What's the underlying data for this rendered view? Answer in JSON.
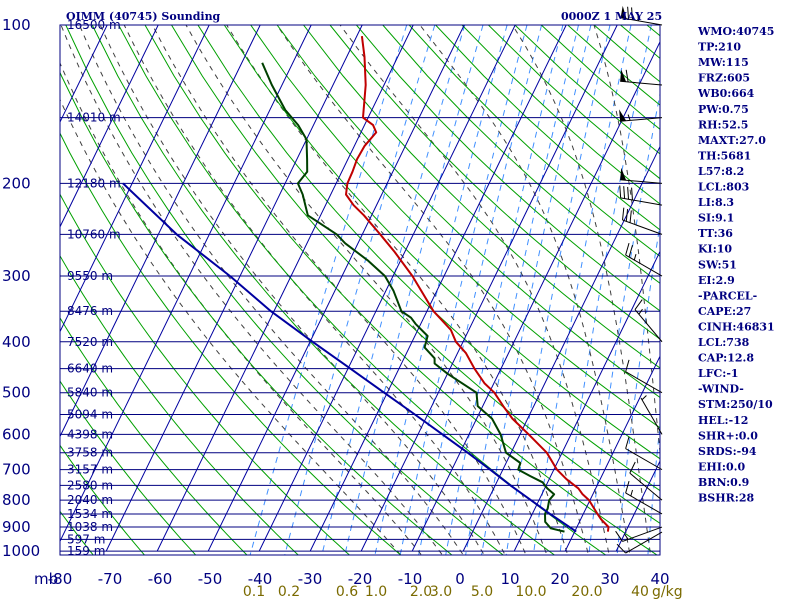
{
  "header": {
    "title": "OIMM (40745) Sounding",
    "time": "0000Z  1 MAY 25"
  },
  "indices": [
    "WMO:40745",
    "TP:210",
    "MW:115",
    "FRZ:605",
    "WB0:664",
    "PW:0.75",
    "RH:52.5",
    "MAXT:27.0",
    "TH:5681",
    "L57:8.2",
    "LCL:803",
    "LI:8.3",
    "SI:9.1",
    "TT:36",
    "KI:10",
    "SW:51",
    "EI:2.9",
    "-PARCEL-",
    "CAPE:27",
    "CINH:46831",
    "LCL:738",
    "CAP:12.8",
    "LFC:-1",
    "-WIND-",
    "STM:250/10",
    "HEL:-12",
    "SHR+:0.0",
    "SRDS:-94",
    "EHI:0.0",
    "BRN:0.9",
    "BSHR:28"
  ],
  "colors": {
    "frame": "#000080",
    "isotherm": "#0000a0",
    "dry_adiabat": "#00a000",
    "moist_adiabat": "#404040",
    "mixing_ratio": "#4090ff",
    "temperature": "#c00000",
    "dewpoint": "#004000",
    "parcel": "#0000a0",
    "wind": "#000000",
    "mix_label": "#7a6a00"
  },
  "chart_data": {
    "type": "line",
    "title": "OIMM (40745) Sounding",
    "xlabel": "",
    "ylabel": "mb",
    "pressure_ticks": [
      100,
      200,
      300,
      400,
      500,
      600,
      700,
      800,
      900,
      1000
    ],
    "pressure_labels": [
      "100",
      "200",
      "300",
      "400",
      "500",
      "600",
      "700",
      "800",
      "900",
      "1000"
    ],
    "ylim": [
      1000,
      100
    ],
    "xlim": [
      -80,
      40
    ],
    "temperature_ticks": [
      -80,
      -70,
      -60,
      -50,
      -40,
      -30,
      -20,
      -10,
      0,
      10,
      20,
      30,
      40
    ],
    "temperature_labels": [
      "-80",
      "-70",
      "-60",
      "-50",
      "-40",
      "-30",
      "-20",
      "-10",
      "0",
      "10",
      "20",
      "30",
      "40"
    ],
    "x_axis_label": "mb",
    "mixing_ratio_labels": [
      {
        "label": "0.1",
        "value": 0.1
      },
      {
        "label": "0.2",
        "value": 0.2
      },
      {
        "label": "0.6",
        "value": 0.6
      },
      {
        "label": "1.0",
        "value": 1.0
      },
      {
        "label": "2.0",
        "value": 2.0
      },
      {
        "label": "3.0",
        "value": 3.0
      },
      {
        "label": "5.0",
        "value": 5.0
      },
      {
        "label": "10.0",
        "value": 10.0
      },
      {
        "label": "20.0",
        "value": 20.0
      },
      {
        "label": "40",
        "value": 40.0
      }
    ],
    "mixing_ratio_unit": "g/kg",
    "height_labels": [
      {
        "p": 100,
        "label": "16500 m"
      },
      {
        "p": 150,
        "label": "14010 m"
      },
      {
        "p": 200,
        "label": "12180 m"
      },
      {
        "p": 250,
        "label": "10760 m"
      },
      {
        "p": 300,
        "label": "9550 m"
      },
      {
        "p": 350,
        "label": "8476 m"
      },
      {
        "p": 400,
        "label": "7520 m"
      },
      {
        "p": 450,
        "label": "6640 m"
      },
      {
        "p": 500,
        "label": "5840 m"
      },
      {
        "p": 550,
        "label": "5094 m"
      },
      {
        "p": 600,
        "label": "4398 m"
      },
      {
        "p": 650,
        "label": "3758 m"
      },
      {
        "p": 700,
        "label": "3157 m"
      },
      {
        "p": 750,
        "label": "2580 m"
      },
      {
        "p": 800,
        "label": "2040 m"
      },
      {
        "p": 850,
        "label": "1534 m"
      },
      {
        "p": 900,
        "label": "1038 m"
      },
      {
        "p": 950,
        "label": "597 m"
      },
      {
        "p": 1000,
        "label": "159 m"
      }
    ],
    "series": [
      {
        "key": "temperature",
        "points": [
          [
            918,
            26.5
          ],
          [
            900,
            26.2
          ],
          [
            870,
            24.0
          ],
          [
            850,
            22.8
          ],
          [
            800,
            19.8
          ],
          [
            780,
            18.0
          ],
          [
            760,
            16.6
          ],
          [
            730,
            13.4
          ],
          [
            700,
            10.6
          ],
          [
            650,
            7.0
          ],
          [
            600,
            1.7
          ],
          [
            560,
            -3.0
          ],
          [
            530,
            -6.0
          ],
          [
            500,
            -9.0
          ],
          [
            480,
            -11.8
          ],
          [
            450,
            -15.2
          ],
          [
            420,
            -18.4
          ],
          [
            400,
            -21.4
          ],
          [
            380,
            -23.5
          ],
          [
            350,
            -28.7
          ],
          [
            300,
            -36.2
          ],
          [
            270,
            -42.0
          ],
          [
            250,
            -46.5
          ],
          [
            230,
            -51.5
          ],
          [
            220,
            -54.5
          ],
          [
            210,
            -57.0
          ],
          [
            200,
            -57.8
          ],
          [
            190,
            -57.9
          ],
          [
            180,
            -58.2
          ],
          [
            170,
            -58.0
          ],
          [
            160,
            -57.0
          ],
          [
            155,
            -58.3
          ],
          [
            150,
            -61.0
          ],
          [
            130,
            -63.6
          ],
          [
            115,
            -66.5
          ],
          [
            105,
            -69.0
          ]
        ]
      },
      {
        "key": "dewpoint",
        "points": [
          [
            918,
            18.0
          ],
          [
            905,
            15.0
          ],
          [
            880,
            13.3
          ],
          [
            850,
            12.5
          ],
          [
            830,
            12.5
          ],
          [
            800,
            12.0
          ],
          [
            780,
            12.4
          ],
          [
            760,
            10.5
          ],
          [
            740,
            9.0
          ],
          [
            720,
            6.0
          ],
          [
            700,
            3.0
          ],
          [
            680,
            2.8
          ],
          [
            650,
            -1.0
          ],
          [
            600,
            -3.8
          ],
          [
            560,
            -7.0
          ],
          [
            530,
            -11.0
          ],
          [
            500,
            -12.5
          ],
          [
            460,
            -20.0
          ],
          [
            440,
            -23.5
          ],
          [
            430,
            -24.0
          ],
          [
            410,
            -27.0
          ],
          [
            390,
            -27.5
          ],
          [
            370,
            -31.0
          ],
          [
            360,
            -32.5
          ],
          [
            350,
            -35.0
          ],
          [
            320,
            -38.5
          ],
          [
            300,
            -41.6
          ],
          [
            280,
            -46.5
          ],
          [
            260,
            -52.5
          ],
          [
            250,
            -55.0
          ],
          [
            230,
            -62.5
          ],
          [
            210,
            -65.5
          ],
          [
            200,
            -67.5
          ],
          [
            190,
            -66.8
          ],
          [
            180,
            -68.0
          ],
          [
            165,
            -70.0
          ],
          [
            155,
            -73.0
          ],
          [
            145,
            -77.0
          ],
          [
            130,
            -82.0
          ],
          [
            118,
            -86.0
          ]
        ]
      },
      {
        "key": "parcel",
        "points": [
          [
            918,
            20.3
          ],
          [
            850,
            13.5
          ],
          [
            800,
            8.4
          ],
          [
            750,
            3.0
          ],
          [
            700,
            -2.5
          ],
          [
            650,
            -8.5
          ],
          [
            600,
            -15.2
          ],
          [
            550,
            -22.5
          ],
          [
            500,
            -30.6
          ],
          [
            450,
            -39.5
          ],
          [
            400,
            -49.5
          ],
          [
            350,
            -60.6
          ],
          [
            300,
            -72.0
          ],
          [
            250,
            -86.4
          ],
          [
            200,
            -101.8
          ]
        ]
      }
    ],
    "winds": [
      {
        "p": 100,
        "dir": 280,
        "spd": 75
      },
      {
        "p": 130,
        "dir": 275,
        "spd": 60
      },
      {
        "p": 150,
        "dir": 265,
        "spd": 55
      },
      {
        "p": 200,
        "dir": 275,
        "spd": 50
      },
      {
        "p": 220,
        "dir": 280,
        "spd": 40
      },
      {
        "p": 250,
        "dir": 290,
        "spd": 30
      },
      {
        "p": 300,
        "dir": 300,
        "spd": 25
      },
      {
        "p": 400,
        "dir": 320,
        "spd": 15
      },
      {
        "p": 500,
        "dir": 300,
        "spd": 10
      },
      {
        "p": 600,
        "dir": 330,
        "spd": 5
      },
      {
        "p": 700,
        "dir": 300,
        "spd": 10
      },
      {
        "p": 800,
        "dir": 310,
        "spd": 10
      },
      {
        "p": 850,
        "dir": 300,
        "spd": 15
      },
      {
        "p": 900,
        "dir": 250,
        "spd": 15
      },
      {
        "p": 920,
        "dir": 240,
        "spd": 10
      }
    ]
  }
}
